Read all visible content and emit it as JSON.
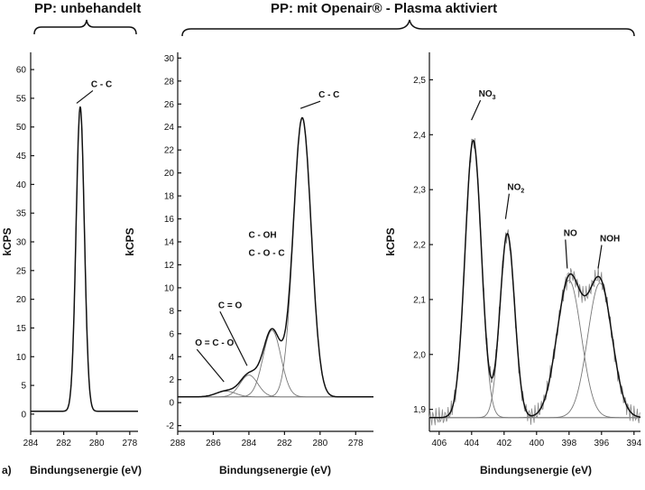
{
  "headers": {
    "left": "PP: unbehandelt",
    "right": "PP: mit Openair® - Plasma aktiviert"
  },
  "figure_label": "a)",
  "chart_data": [
    {
      "type": "line",
      "ylabel": "kCPS",
      "xlabel": "Bindungsenergie (eV)",
      "xlim": [
        284,
        277.5
      ],
      "xticks": [
        284,
        282,
        280,
        278
      ],
      "ylim": [
        -3,
        63
      ],
      "yticks": [
        0,
        5,
        10,
        15,
        20,
        25,
        30,
        35,
        40,
        45,
        50,
        55,
        60
      ],
      "grid": false,
      "peaks": [
        {
          "label": "C - C",
          "center": 281.0,
          "height": 53.5,
          "width": 0.25
        }
      ],
      "baseline": 0.5,
      "annotations": [
        {
          "text": "C - C",
          "x": 281.0,
          "y": 53.5
        }
      ]
    },
    {
      "type": "line",
      "ylabel": "kCPS",
      "xlabel": "Bindungsenergie (eV)",
      "xlim": [
        288,
        277
      ],
      "xticks": [
        288,
        286,
        284,
        282,
        280,
        278
      ],
      "ylim": [
        -2.5,
        30.5
      ],
      "yticks": [
        -2,
        0,
        2,
        4,
        6,
        8,
        10,
        12,
        14,
        16,
        18,
        20,
        22,
        24,
        26,
        28,
        30
      ],
      "grid": false,
      "baseline": 0.5,
      "peaks": [
        {
          "label": "O = C - O",
          "center": 285.3,
          "height": 1.0,
          "width": 0.55
        },
        {
          "label": "C = O",
          "center": 284.0,
          "height": 2.4,
          "width": 0.5
        },
        {
          "label": "C - OH / C - O - C",
          "center": 282.7,
          "height": 6.3,
          "width": 0.5
        },
        {
          "label": "C - C",
          "center": 281.0,
          "height": 24.8,
          "width": 0.5
        }
      ],
      "annotations": [
        {
          "text": "O = C - O",
          "x": 285.3,
          "y": 1.5
        },
        {
          "text": "C = O",
          "x": 284.0,
          "y": 2.9
        },
        {
          "text": "C - OH",
          "x": 282.7,
          "y": 6.8
        },
        {
          "text": "C - O - C",
          "x": 282.7,
          "y": 6.8
        },
        {
          "text": "C - C",
          "x": 281.0,
          "y": 25.3
        }
      ]
    },
    {
      "type": "line",
      "ylabel": "kCPS",
      "xlabel": "Bindungsenergie (eV)",
      "xlim": [
        406.6,
        393.6
      ],
      "xticks": [
        406,
        404,
        402,
        400,
        398,
        396,
        394
      ],
      "ylim": [
        1.86,
        2.55
      ],
      "yticks": [
        1.9,
        2.0,
        2.1,
        2.2,
        2.3,
        2.4,
        2.5
      ],
      "ytick_labels": [
        "1,9",
        "2,0",
        "2,1",
        "2,2",
        "2,3",
        "2,4",
        "2,5"
      ],
      "grid": false,
      "baseline": 1.885,
      "peaks": [
        {
          "label": "NO3",
          "center": 403.9,
          "height": 2.39,
          "width": 0.5
        },
        {
          "label": "NO2",
          "center": 401.8,
          "height": 2.22,
          "width": 0.45
        },
        {
          "label": "NO",
          "center": 398.0,
          "height": 2.135,
          "width": 0.75
        },
        {
          "label": "NOH",
          "center": 396.1,
          "height": 2.13,
          "width": 0.75
        }
      ],
      "annotations": [
        {
          "text": "NO",
          "sub": "3",
          "x": 403.9,
          "y": 2.42
        },
        {
          "text": "NO",
          "sub": "2",
          "x": 401.8,
          "y": 2.24
        },
        {
          "text": "NO",
          "x": 398.0,
          "y": 2.15
        },
        {
          "text": "NOH",
          "x": 396.1,
          "y": 2.15
        }
      ]
    }
  ]
}
